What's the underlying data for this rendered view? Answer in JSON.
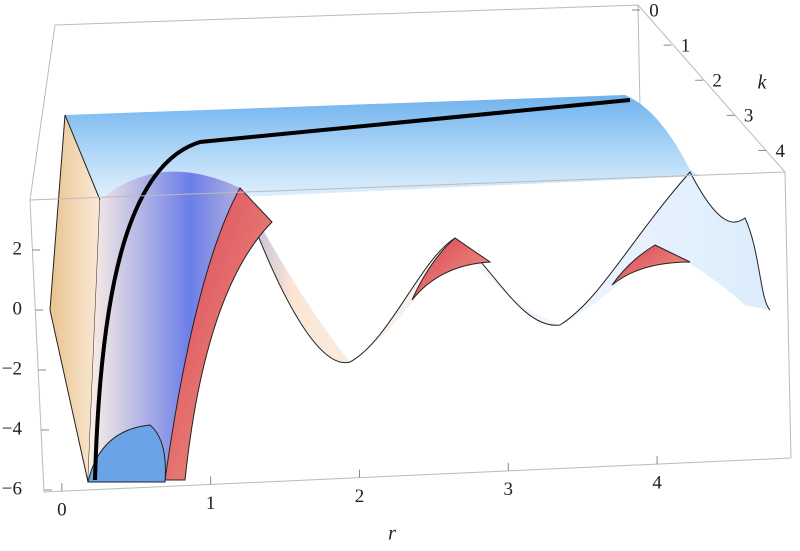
{
  "chart_data": {
    "type": "surface3d",
    "x_label": "r",
    "y_label": "k",
    "xlim": [
      -0.12,
      4.9
    ],
    "xticks": [
      0,
      1,
      2,
      3,
      4
    ],
    "ylim": [
      0,
      4.5
    ],
    "yticks": [
      0,
      1,
      2,
      3,
      4
    ],
    "zlim": [
      -6,
      3.5
    ],
    "zticks": [
      {
        "value": -6,
        "label": "−6"
      },
      {
        "value": -4,
        "label": "−4"
      },
      {
        "value": -2,
        "label": "−2"
      },
      0,
      2
    ]
  }
}
